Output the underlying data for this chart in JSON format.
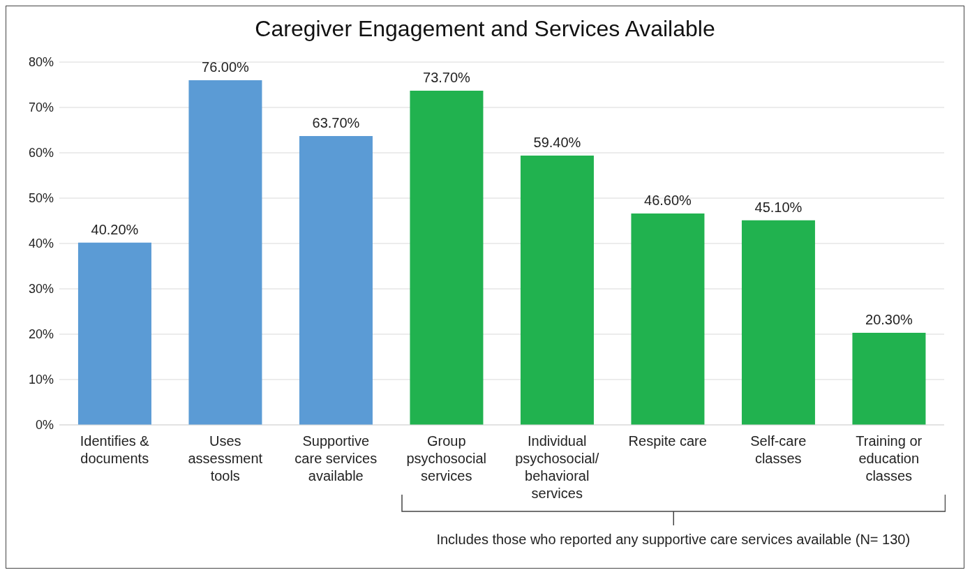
{
  "chart_data": {
    "type": "bar",
    "title": "Caregiver Engagement and Services Available",
    "categories": [
      "Identifies & documents",
      "Uses assessment tools",
      "Supportive care services available",
      "Group psychosocial services",
      "Individual psychosocial/ behavioral services",
      "Respite care",
      "Self-care classes",
      "Training or education classes"
    ],
    "values": [
      40.2,
      76,
      63.7,
      73.7,
      59.4,
      46.6,
      45.1,
      20.3
    ],
    "value_labels": [
      "40.20%",
      "76.00%",
      "63.70%",
      "73.70%",
      "59.40%",
      "46.60%",
      "45.10%",
      "20.30%"
    ],
    "colors": [
      "#5b9bd5",
      "#5b9bd5",
      "#5b9bd5",
      "#21b24f",
      "#21b24f",
      "#21b24f",
      "#21b24f",
      "#21b24f"
    ],
    "ylim": [
      0,
      80
    ],
    "yticks": [
      {
        "value": 0,
        "label": "0%"
      },
      {
        "value": 10,
        "label": "10%"
      },
      {
        "value": 20,
        "label": "20%"
      },
      {
        "value": 30,
        "label": "30%"
      },
      {
        "value": 40,
        "label": "40%"
      },
      {
        "value": 50,
        "label": "50%"
      },
      {
        "value": 60,
        "label": "60%"
      },
      {
        "value": 70,
        "label": "70%"
      },
      {
        "value": 80,
        "label": "80%"
      }
    ],
    "grid": "y",
    "annotations": [
      "Includes those who reported any supportive care services available (N= 130)"
    ]
  }
}
